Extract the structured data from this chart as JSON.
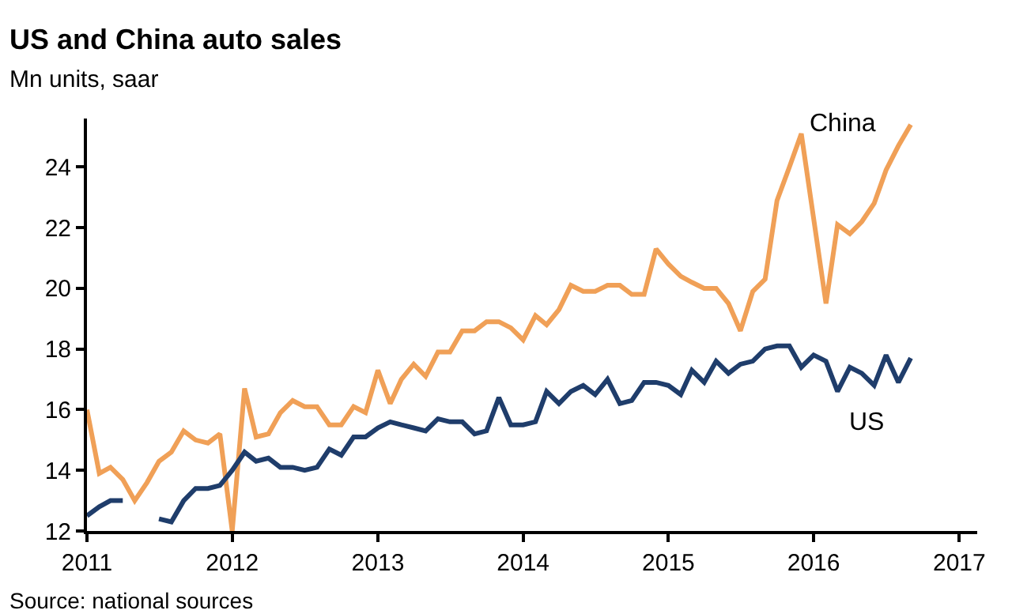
{
  "chart_data": {
    "type": "line",
    "title": "US and China auto sales",
    "subtitle": "Mn units, saar",
    "x": [
      "2011-01",
      "2011-02",
      "2011-03",
      "2011-04",
      "2011-05",
      "2011-06",
      "2011-07",
      "2011-08",
      "2011-09",
      "2011-10",
      "2011-11",
      "2011-12",
      "2012-01",
      "2012-02",
      "2012-03",
      "2012-04",
      "2012-05",
      "2012-06",
      "2012-07",
      "2012-08",
      "2012-09",
      "2012-10",
      "2012-11",
      "2012-12",
      "2013-01",
      "2013-02",
      "2013-03",
      "2013-04",
      "2013-05",
      "2013-06",
      "2013-07",
      "2013-08",
      "2013-09",
      "2013-10",
      "2013-11",
      "2013-12",
      "2014-01",
      "2014-02",
      "2014-03",
      "2014-04",
      "2014-05",
      "2014-06",
      "2014-07",
      "2014-08",
      "2014-09",
      "2014-10",
      "2014-11",
      "2014-12",
      "2015-01",
      "2015-02",
      "2015-03",
      "2015-04",
      "2015-05",
      "2015-06",
      "2015-07",
      "2015-08",
      "2015-09",
      "2015-10",
      "2015-11",
      "2015-12",
      "2016-01",
      "2016-02",
      "2016-03",
      "2016-04",
      "2016-05",
      "2016-06",
      "2016-07",
      "2016-08",
      "2016-09"
    ],
    "series": [
      {
        "name": "China",
        "color": "#f0a057",
        "values": [
          16.0,
          13.9,
          14.1,
          13.7,
          13.0,
          13.6,
          14.3,
          14.6,
          15.3,
          15.0,
          14.9,
          15.2,
          12.0,
          16.7,
          15.1,
          15.2,
          15.9,
          16.3,
          16.1,
          16.1,
          15.5,
          15.5,
          16.1,
          15.9,
          17.3,
          16.2,
          17.0,
          17.5,
          17.1,
          17.9,
          17.9,
          18.6,
          18.6,
          18.9,
          18.9,
          18.7,
          18.3,
          19.1,
          18.8,
          19.3,
          20.1,
          19.9,
          19.9,
          20.1,
          20.1,
          19.8,
          19.8,
          21.3,
          20.8,
          20.4,
          20.2,
          20.0,
          20.0,
          19.5,
          18.6,
          19.9,
          20.3,
          22.9,
          24.0,
          25.1,
          22.3,
          19.5,
          22.1,
          21.8,
          22.2,
          22.8,
          23.9,
          24.7,
          25.4
        ]
      },
      {
        "name": "US",
        "color": "#1f3d6b",
        "values": [
          12.5,
          12.8,
          13.0,
          13.0,
          null,
          null,
          12.4,
          12.3,
          13.0,
          13.4,
          13.4,
          13.5,
          14.0,
          14.6,
          14.3,
          14.4,
          14.1,
          14.1,
          14.0,
          14.1,
          14.7,
          14.5,
          15.1,
          15.1,
          15.4,
          15.6,
          15.5,
          15.4,
          15.3,
          15.7,
          15.6,
          15.6,
          15.2,
          15.3,
          16.4,
          15.5,
          15.5,
          15.6,
          16.6,
          16.2,
          16.6,
          16.8,
          16.5,
          17.0,
          16.2,
          16.3,
          16.9,
          16.9,
          16.8,
          16.5,
          17.3,
          16.9,
          17.6,
          17.2,
          17.5,
          17.6,
          18.0,
          18.1,
          18.1,
          17.4,
          17.8,
          17.6,
          16.6,
          17.4,
          17.2,
          16.8,
          17.8,
          16.9,
          17.7
        ]
      }
    ],
    "xlim": [
      "2011-01-01",
      "2017-02-15"
    ],
    "xticks": [
      {
        "value": "2011-01-01",
        "label": "2011"
      },
      {
        "value": "2012-01-01",
        "label": "2012"
      },
      {
        "value": "2013-01-01",
        "label": "2013"
      },
      {
        "value": "2014-01-01",
        "label": "2014"
      },
      {
        "value": "2015-01-01",
        "label": "2015"
      },
      {
        "value": "2016-01-01",
        "label": "2016"
      },
      {
        "value": "2017-01-01",
        "label": "2017"
      }
    ],
    "ylim": [
      12,
      25.6
    ],
    "yticks": [
      12,
      14,
      16,
      18,
      20,
      22,
      24
    ],
    "legend": false,
    "line_style": "solid",
    "marker": "none",
    "annotations": [
      "Source: national sources"
    ]
  }
}
